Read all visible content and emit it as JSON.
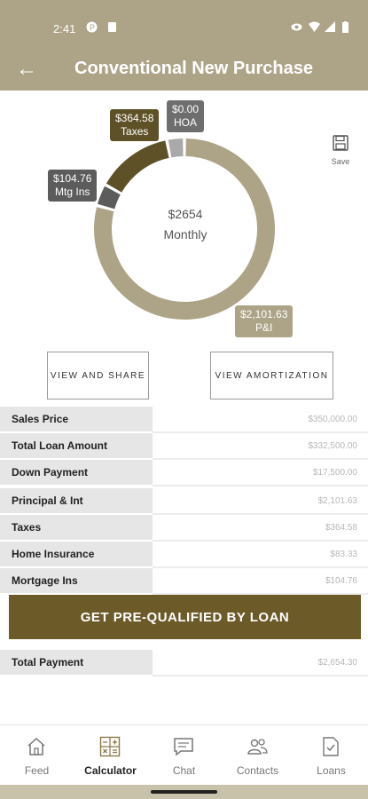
{
  "status_bar": {
    "time": "2:41"
  },
  "header": {
    "title": "Conventional New Purchase",
    "back_icon": "arrow-left-icon"
  },
  "chart_data": {
    "type": "pie",
    "center_value": "$2654",
    "center_label": "Monthly",
    "slices": [
      {
        "name": "P&I",
        "value": 2101.63,
        "label": "$2,101.63",
        "color": "#ada487"
      },
      {
        "name": "Mtg Ins",
        "value": 104.76,
        "label": "$104.76",
        "color": "#5c5c5c"
      },
      {
        "name": "Taxes",
        "value": 364.58,
        "label": "$364.58",
        "color": "#5f5127"
      },
      {
        "name": "HOA",
        "value": 0.0,
        "label": "$0.00",
        "color": "#6e6e6e"
      },
      {
        "name": "Home Insurance",
        "value": 83.33,
        "label": "",
        "color": "#a9a9a9"
      }
    ]
  },
  "save": {
    "label": "Save",
    "icon": "floppy-disk-icon"
  },
  "buttons": {
    "view_share": "VIEW AND SHARE",
    "view_amort": "VIEW AMORTIZATION"
  },
  "loan_rows": [
    {
      "label": "Sales Price",
      "value": "$350,000.00"
    },
    {
      "label": "Total Loan Amount",
      "value": "$332,500.00"
    },
    {
      "label": "Down Payment",
      "value": "$17,500.00"
    }
  ],
  "payment_rows": [
    {
      "label": "Principal & Int",
      "value": "$2,101.63"
    },
    {
      "label": "Taxes",
      "value": "$364.58"
    },
    {
      "label": "Home Insurance",
      "value": "$83.33"
    },
    {
      "label": "Mortgage Ins",
      "value": "$104.76"
    }
  ],
  "cta": {
    "label": "GET PRE-QUALIFIED BY LOAN"
  },
  "total_row": {
    "label": "Total Payment",
    "value": "$2,654.30"
  },
  "nav": [
    {
      "label": "Feed",
      "icon": "home-icon"
    },
    {
      "label": "Calculator",
      "icon": "calculator-icon",
      "active": true
    },
    {
      "label": "Chat",
      "icon": "chat-icon"
    },
    {
      "label": "Contacts",
      "icon": "contacts-icon"
    },
    {
      "label": "Loans",
      "icon": "document-check-icon"
    }
  ]
}
